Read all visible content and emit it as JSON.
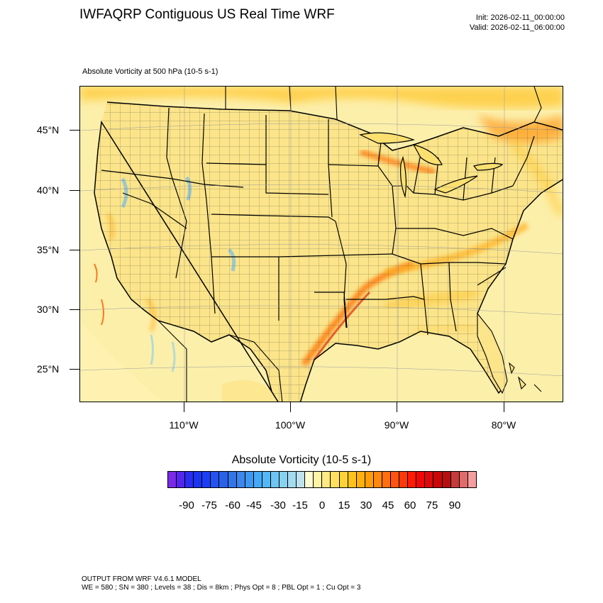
{
  "header": {
    "title": "IWFAQRP Contiguous US Real Time WRF",
    "init": "Init: 2026-02-11_00:00:00",
    "valid": "Valid: 2026-02-11_06:00:00"
  },
  "field_label": "Absolute Vorticity at 500 hPa   (10-5 s-1)",
  "map": {
    "lat_labels": [
      "45°N",
      "40°N",
      "35°N",
      "30°N",
      "25°N"
    ],
    "lon_labels": [
      "110°W",
      "100°W",
      "90°W",
      "80°W"
    ],
    "background_color": "#fde98f",
    "land_color": "#fbe58a",
    "ocean_color": "#fcefaa",
    "boundary_color": "#000000"
  },
  "colorbar": {
    "title": "Absolute Vorticity  (10-5 s-1)",
    "tick_labels": [
      "-90",
      "-75",
      "-60",
      "-45",
      "-30",
      "-15",
      "0",
      "15",
      "30",
      "45",
      "60",
      "75",
      "90"
    ],
    "colors": [
      "#7a2ae8",
      "#5427f0",
      "#2a2df2",
      "#1a36f0",
      "#1c3ff5",
      "#2352f0",
      "#2a61e8",
      "#3474e6",
      "#3c86ec",
      "#3f97f2",
      "#46a9f5",
      "#55b8f6",
      "#6ec5f3",
      "#88d1f0",
      "#a5dbee",
      "#bfe3ee",
      "#fffbd0",
      "#fff3a6",
      "#ffea85",
      "#ffe060",
      "#ffd23a",
      "#ffc21c",
      "#ffb00c",
      "#ff9d08",
      "#ff880c",
      "#ff6e0f",
      "#ff540f",
      "#ff380a",
      "#ff1a06",
      "#f20606",
      "#dc0a0a",
      "#c90707",
      "#b50f10",
      "#c83a3a",
      "#e06b6b",
      "#f59e9e"
    ]
  },
  "footer": {
    "line1": "OUTPUT FROM WRF V4.6.1 MODEL",
    "line2": "WE = 580 ; SN = 380 ; Levels = 38 ; Dis = 8km ; Phys Opt = 8 ; PBL Opt = 1 ; Cu Opt = 3"
  }
}
